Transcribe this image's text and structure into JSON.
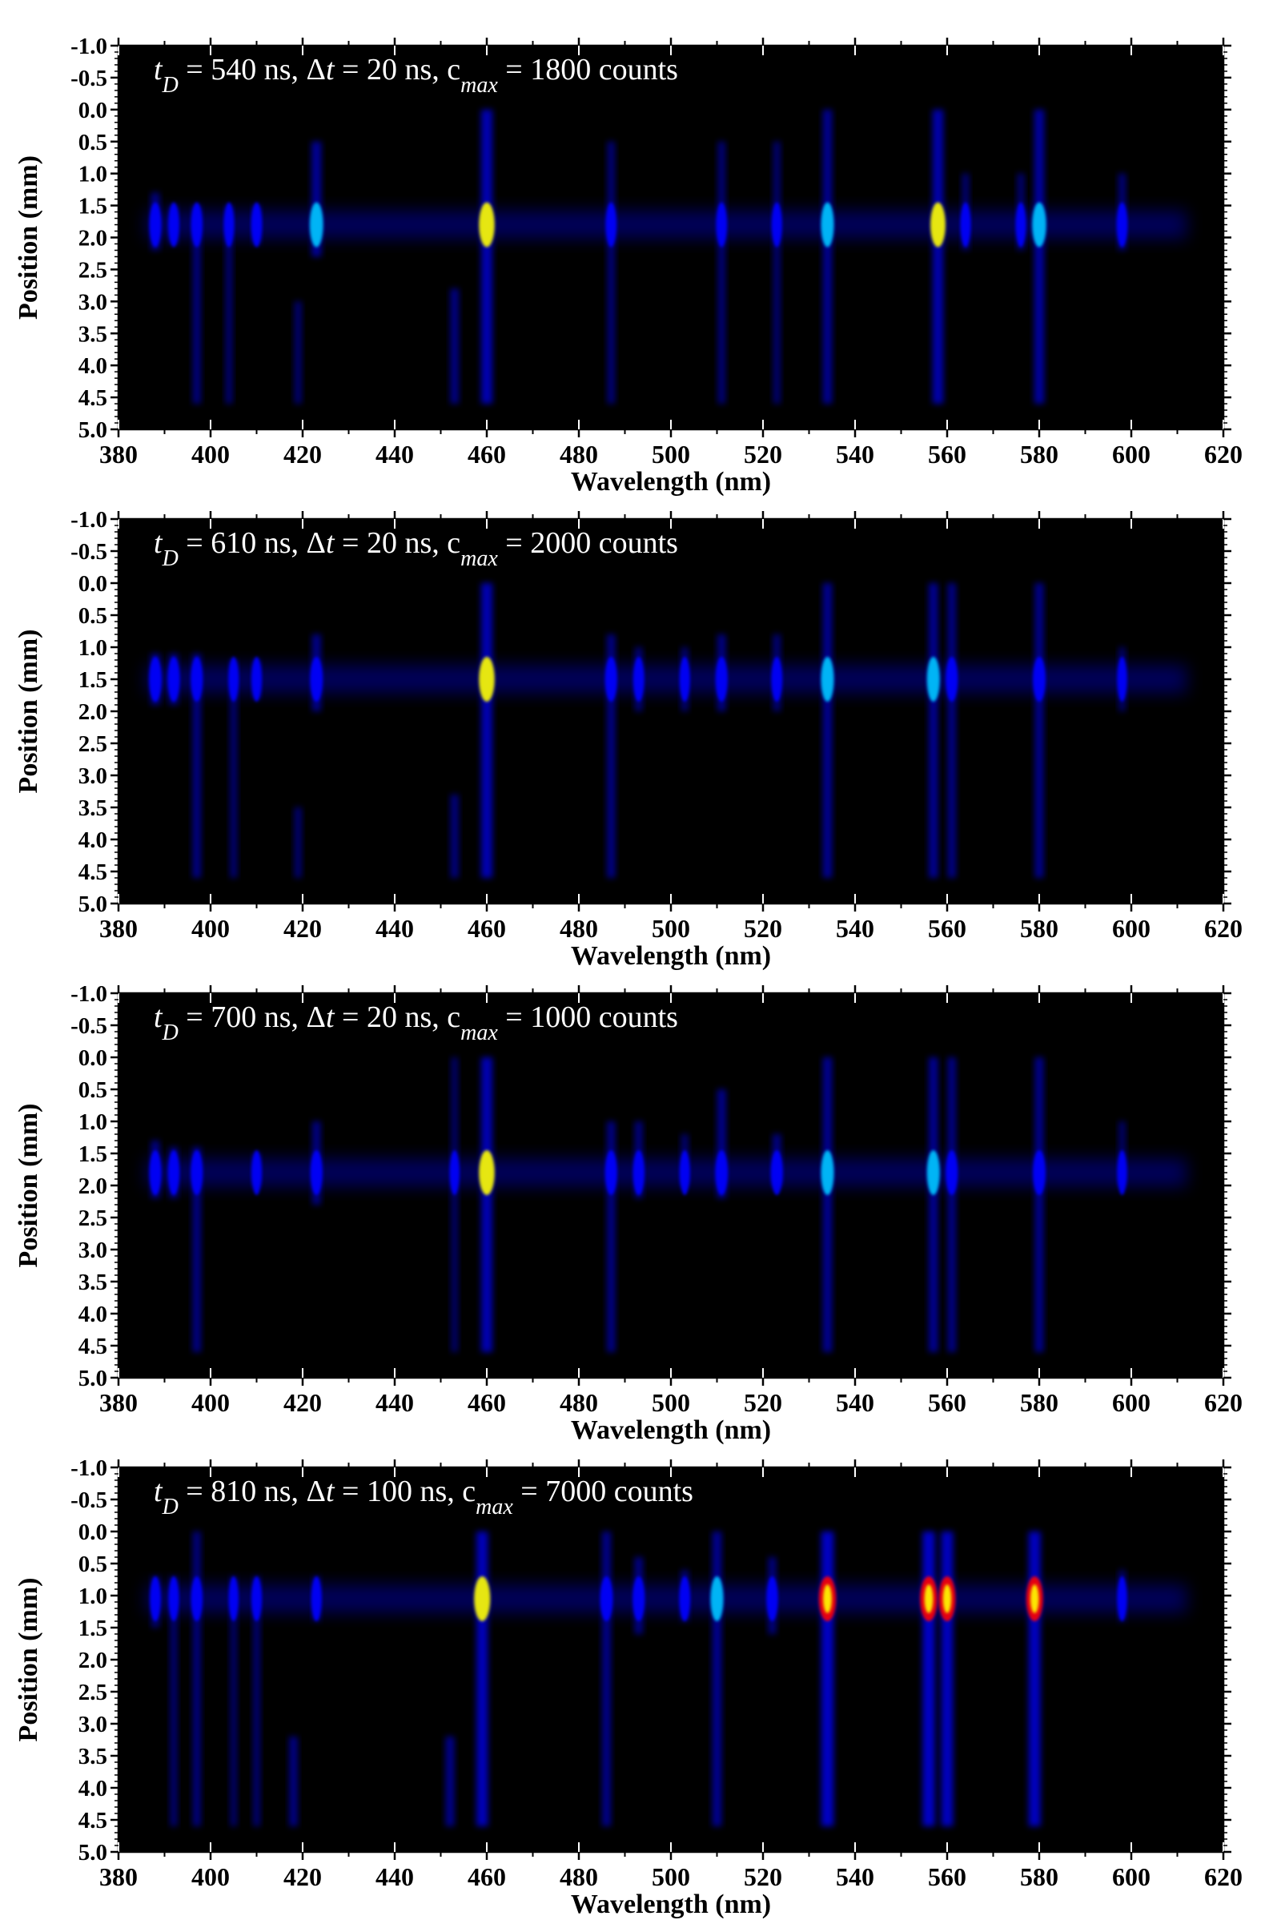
{
  "chart_data": [
    {
      "type": "heatmap",
      "annotation": {
        "t_value": "540 ns",
        "dt_value": "20 ns",
        "c_value": "1800 counts"
      },
      "xlabel": "Wavelength (nm)",
      "ylabel": "Position (mm)",
      "xlim": [
        380,
        620
      ],
      "ylim": [
        -1.0,
        5.0
      ],
      "xticks": [
        "380",
        "400",
        "420",
        "440",
        "460",
        "480",
        "500",
        "520",
        "540",
        "560",
        "580",
        "600",
        "620"
      ],
      "yticks": [
        "-1.0",
        "-0.5",
        "0.0",
        "0.5",
        "1.0",
        "1.5",
        "2.0",
        "2.5",
        "3.0",
        "3.5",
        "4.0",
        "4.5",
        "5.0"
      ],
      "band_center": 1.8,
      "lines": [
        {
          "wl": 388,
          "top": 1.3,
          "bottom": 2.2,
          "i": 0.45
        },
        {
          "wl": 392,
          "top": 1.5,
          "bottom": 2.1,
          "i": 0.35
        },
        {
          "wl": 397,
          "top": 1.5,
          "bottom": 4.6,
          "i": 0.4
        },
        {
          "wl": 404,
          "top": 1.5,
          "bottom": 4.6,
          "i": 0.3
        },
        {
          "wl": 410,
          "top": 1.5,
          "bottom": 2.1,
          "i": 0.35
        },
        {
          "wl": 419,
          "top": 3.0,
          "bottom": 4.6,
          "i": 0.3
        },
        {
          "wl": 423,
          "top": 0.5,
          "bottom": 2.3,
          "i": 0.6
        },
        {
          "wl": 453,
          "top": 2.8,
          "bottom": 4.6,
          "i": 0.45
        },
        {
          "wl": 460,
          "top": 0.0,
          "bottom": 4.6,
          "i": 0.8
        },
        {
          "wl": 487,
          "top": 0.5,
          "bottom": 4.6,
          "i": 0.35
        },
        {
          "wl": 511,
          "top": 0.5,
          "bottom": 4.6,
          "i": 0.35
        },
        {
          "wl": 523,
          "top": 0.5,
          "bottom": 4.6,
          "i": 0.3
        },
        {
          "wl": 534,
          "top": 0.0,
          "bottom": 4.6,
          "i": 0.55
        },
        {
          "wl": 558,
          "top": 0.0,
          "bottom": 4.6,
          "i": 0.75
        },
        {
          "wl": 564,
          "top": 1.0,
          "bottom": 2.2,
          "i": 0.3
        },
        {
          "wl": 576,
          "top": 1.0,
          "bottom": 2.2,
          "i": 0.3
        },
        {
          "wl": 580,
          "top": 0.0,
          "bottom": 4.6,
          "i": 0.65
        },
        {
          "wl": 598,
          "top": 1.0,
          "bottom": 2.2,
          "i": 0.35
        }
      ]
    },
    {
      "type": "heatmap",
      "annotation": {
        "t_value": "610 ns",
        "dt_value": "20 ns",
        "c_value": "2000 counts"
      },
      "xlabel": "Wavelength (nm)",
      "ylabel": "Position (mm)",
      "xlim": [
        380,
        620
      ],
      "ylim": [
        -1.0,
        5.0
      ],
      "xticks": [
        "380",
        "400",
        "420",
        "440",
        "460",
        "480",
        "500",
        "520",
        "540",
        "560",
        "580",
        "600",
        "620"
      ],
      "yticks": [
        "-1.0",
        "-0.5",
        "0.0",
        "0.5",
        "1.0",
        "1.5",
        "2.0",
        "2.5",
        "3.0",
        "3.5",
        "4.0",
        "4.5",
        "5.0"
      ],
      "band_center": 1.5,
      "lines": [
        {
          "wl": 388,
          "top": 1.1,
          "bottom": 1.9,
          "i": 0.5
        },
        {
          "wl": 392,
          "top": 1.1,
          "bottom": 1.9,
          "i": 0.45
        },
        {
          "wl": 397,
          "top": 1.1,
          "bottom": 4.6,
          "i": 0.45
        },
        {
          "wl": 405,
          "top": 1.2,
          "bottom": 4.6,
          "i": 0.3
        },
        {
          "wl": 410,
          "top": 1.2,
          "bottom": 1.8,
          "i": 0.3
        },
        {
          "wl": 419,
          "top": 3.5,
          "bottom": 4.6,
          "i": 0.3
        },
        {
          "wl": 423,
          "top": 0.8,
          "bottom": 2.0,
          "i": 0.5
        },
        {
          "wl": 453,
          "top": 3.3,
          "bottom": 4.6,
          "i": 0.4
        },
        {
          "wl": 460,
          "top": 0.0,
          "bottom": 4.6,
          "i": 0.8
        },
        {
          "wl": 487,
          "top": 0.8,
          "bottom": 4.6,
          "i": 0.45
        },
        {
          "wl": 493,
          "top": 1.0,
          "bottom": 2.0,
          "i": 0.35
        },
        {
          "wl": 503,
          "top": 1.0,
          "bottom": 2.0,
          "i": 0.3
        },
        {
          "wl": 511,
          "top": 0.8,
          "bottom": 2.0,
          "i": 0.45
        },
        {
          "wl": 523,
          "top": 0.8,
          "bottom": 2.0,
          "i": 0.35
        },
        {
          "wl": 534,
          "top": 0.0,
          "bottom": 4.6,
          "i": 0.55
        },
        {
          "wl": 557,
          "top": 0.0,
          "bottom": 4.6,
          "i": 0.55
        },
        {
          "wl": 561,
          "top": 0.0,
          "bottom": 4.6,
          "i": 0.45
        },
        {
          "wl": 580,
          "top": 0.0,
          "bottom": 4.6,
          "i": 0.5
        },
        {
          "wl": 598,
          "top": 1.0,
          "bottom": 2.0,
          "i": 0.25
        }
      ]
    },
    {
      "type": "heatmap",
      "annotation": {
        "t_value": "700 ns",
        "dt_value": "20 ns",
        "c_value": "1000 counts"
      },
      "xlabel": "Wavelength (nm)",
      "ylabel": "Position (mm)",
      "xlim": [
        380,
        620
      ],
      "ylim": [
        -1.0,
        5.0
      ],
      "xticks": [
        "380",
        "400",
        "420",
        "440",
        "460",
        "480",
        "500",
        "520",
        "540",
        "560",
        "580",
        "600",
        "620"
      ],
      "yticks": [
        "-1.0",
        "-0.5",
        "0.0",
        "0.5",
        "1.0",
        "1.5",
        "2.0",
        "2.5",
        "3.0",
        "3.5",
        "4.0",
        "4.5",
        "5.0"
      ],
      "band_center": 1.8,
      "lines": [
        {
          "wl": 388,
          "top": 1.3,
          "bottom": 2.2,
          "i": 0.45
        },
        {
          "wl": 392,
          "top": 1.4,
          "bottom": 2.2,
          "i": 0.4
        },
        {
          "wl": 397,
          "top": 1.4,
          "bottom": 4.6,
          "i": 0.45
        },
        {
          "wl": 410,
          "top": 1.5,
          "bottom": 2.0,
          "i": 0.3
        },
        {
          "wl": 423,
          "top": 1.0,
          "bottom": 2.3,
          "i": 0.45
        },
        {
          "wl": 453,
          "top": 0.0,
          "bottom": 4.6,
          "i": 0.25
        },
        {
          "wl": 460,
          "top": 0.0,
          "bottom": 4.6,
          "i": 0.8
        },
        {
          "wl": 487,
          "top": 1.0,
          "bottom": 4.6,
          "i": 0.45
        },
        {
          "wl": 493,
          "top": 1.0,
          "bottom": 2.2,
          "i": 0.4
        },
        {
          "wl": 503,
          "top": 1.2,
          "bottom": 2.0,
          "i": 0.3
        },
        {
          "wl": 511,
          "top": 0.5,
          "bottom": 2.2,
          "i": 0.5
        },
        {
          "wl": 523,
          "top": 1.2,
          "bottom": 2.0,
          "i": 0.45
        },
        {
          "wl": 534,
          "top": 0.0,
          "bottom": 4.6,
          "i": 0.55
        },
        {
          "wl": 557,
          "top": 0.0,
          "bottom": 4.6,
          "i": 0.55
        },
        {
          "wl": 561,
          "top": 0.0,
          "bottom": 4.6,
          "i": 0.45
        },
        {
          "wl": 580,
          "top": 0.0,
          "bottom": 4.6,
          "i": 0.5
        },
        {
          "wl": 598,
          "top": 1.0,
          "bottom": 2.0,
          "i": 0.25
        }
      ]
    },
    {
      "type": "heatmap",
      "annotation": {
        "t_value": "810 ns",
        "dt_value": "100 ns",
        "c_value": "7000 counts"
      },
      "xlabel": "Wavelength (nm)",
      "ylabel": "Position (mm)",
      "xlim": [
        380,
        620
      ],
      "ylim": [
        -1.0,
        5.0
      ],
      "xticks": [
        "380",
        "400",
        "420",
        "440",
        "460",
        "480",
        "500",
        "520",
        "540",
        "560",
        "580",
        "600",
        "620"
      ],
      "yticks": [
        "-1.0",
        "-0.5",
        "0.0",
        "0.5",
        "1.0",
        "1.5",
        "2.0",
        "2.5",
        "3.0",
        "3.5",
        "4.0",
        "4.5",
        "5.0"
      ],
      "band_center": 1.05,
      "lines": [
        {
          "wl": 388,
          "top": 0.7,
          "bottom": 1.5,
          "i": 0.35
        },
        {
          "wl": 392,
          "top": 0.7,
          "bottom": 4.6,
          "i": 0.3
        },
        {
          "wl": 397,
          "top": 0.0,
          "bottom": 4.6,
          "i": 0.4
        },
        {
          "wl": 405,
          "top": 0.7,
          "bottom": 4.6,
          "i": 0.25
        },
        {
          "wl": 410,
          "top": 0.7,
          "bottom": 4.6,
          "i": 0.3
        },
        {
          "wl": 418,
          "top": 3.2,
          "bottom": 4.6,
          "i": 0.45
        },
        {
          "wl": 423,
          "top": 0.7,
          "bottom": 1.4,
          "i": 0.3
        },
        {
          "wl": 452,
          "top": 3.2,
          "bottom": 4.6,
          "i": 0.5
        },
        {
          "wl": 459,
          "top": 0.0,
          "bottom": 4.6,
          "i": 0.85
        },
        {
          "wl": 486,
          "top": 0.0,
          "bottom": 4.6,
          "i": 0.5
        },
        {
          "wl": 493,
          "top": 0.4,
          "bottom": 1.6,
          "i": 0.45
        },
        {
          "wl": 503,
          "top": 0.6,
          "bottom": 1.4,
          "i": 0.35
        },
        {
          "wl": 510,
          "top": 0.0,
          "bottom": 4.6,
          "i": 0.55
        },
        {
          "wl": 522,
          "top": 0.4,
          "bottom": 1.6,
          "i": 0.4
        },
        {
          "wl": 534,
          "top": 0.0,
          "bottom": 4.6,
          "i": 0.95
        },
        {
          "wl": 556,
          "top": 0.0,
          "bottom": 4.6,
          "i": 0.95
        },
        {
          "wl": 560,
          "top": 0.0,
          "bottom": 4.6,
          "i": 0.9
        },
        {
          "wl": 579,
          "top": 0.0,
          "bottom": 4.6,
          "i": 0.9
        },
        {
          "wl": 598,
          "top": 0.6,
          "bottom": 1.4,
          "i": 0.25
        }
      ]
    }
  ],
  "colors": {
    "background": "#000000",
    "low": "#0000ff",
    "mid": "#00c8ff",
    "high": "#ffff00",
    "peak": "#ff0000"
  }
}
